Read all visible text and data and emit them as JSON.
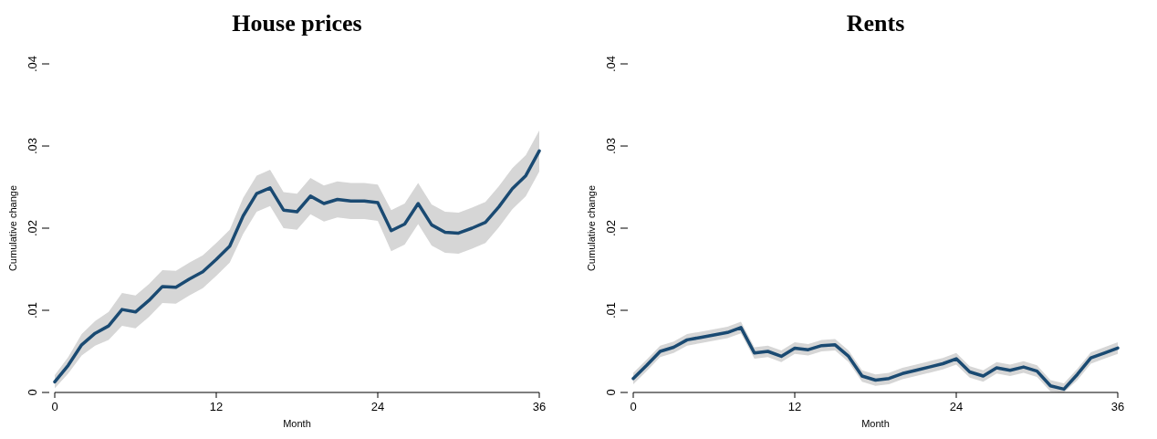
{
  "chart_data": [
    {
      "type": "line",
      "title": "House prices",
      "xlabel": "Month",
      "ylabel": "Cumulative change",
      "xlim": [
        0,
        36
      ],
      "xticks": [
        0,
        12,
        24,
        36
      ],
      "ylim": [
        0,
        0.04
      ],
      "yticks": [
        {
          "value": 0,
          "label": "0"
        },
        {
          "value": 0.01,
          "label": ".01"
        },
        {
          "value": 0.02,
          "label": ".02"
        },
        {
          "value": 0.03,
          "label": ".03"
        },
        {
          "value": 0.04,
          "label": ".04"
        }
      ],
      "grid": false,
      "x": [
        0,
        1,
        2,
        3,
        4,
        5,
        6,
        7,
        8,
        9,
        10,
        11,
        12,
        13,
        14,
        15,
        16,
        17,
        18,
        19,
        20,
        21,
        22,
        23,
        24,
        25,
        26,
        27,
        28,
        29,
        30,
        31,
        32,
        33,
        34,
        35,
        36
      ],
      "series": [
        {
          "color": "#1a4a72",
          "values": [
            0.0013,
            0.0033,
            0.0058,
            0.0072,
            0.0081,
            0.0101,
            0.0098,
            0.0112,
            0.0129,
            0.0128,
            0.0138,
            0.0147,
            0.0162,
            0.0178,
            0.0215,
            0.0242,
            0.0249,
            0.0222,
            0.022,
            0.0239,
            0.023,
            0.0235,
            0.0233,
            0.0233,
            0.0231,
            0.0197,
            0.0205,
            0.023,
            0.0204,
            0.0195,
            0.0194,
            0.02,
            0.0207,
            0.0226,
            0.0248,
            0.0264,
            0.0294
          ],
          "lower": [
            0.0005,
            0.0023,
            0.0045,
            0.0057,
            0.0064,
            0.0081,
            0.0078,
            0.0092,
            0.0109,
            0.0108,
            0.0118,
            0.0127,
            0.0142,
            0.0158,
            0.0193,
            0.022,
            0.0227,
            0.02,
            0.0198,
            0.0217,
            0.0208,
            0.0213,
            0.0211,
            0.0211,
            0.0209,
            0.0172,
            0.018,
            0.0205,
            0.0179,
            0.017,
            0.0169,
            0.0175,
            0.0182,
            0.0201,
            0.0223,
            0.0239,
            0.0269
          ],
          "upper": [
            0.0021,
            0.0043,
            0.0071,
            0.0087,
            0.0098,
            0.0121,
            0.0118,
            0.0132,
            0.0149,
            0.0148,
            0.0158,
            0.0167,
            0.0182,
            0.0198,
            0.0237,
            0.0264,
            0.0271,
            0.0244,
            0.0242,
            0.0261,
            0.0252,
            0.0257,
            0.0255,
            0.0255,
            0.0253,
            0.0222,
            0.023,
            0.0255,
            0.0229,
            0.022,
            0.0219,
            0.0225,
            0.0232,
            0.0251,
            0.0273,
            0.0289,
            0.0319
          ]
        }
      ]
    },
    {
      "type": "line",
      "title": "Rents",
      "xlabel": "Month",
      "ylabel": "Cumulative change",
      "xlim": [
        0,
        36
      ],
      "xticks": [
        0,
        12,
        24,
        36
      ],
      "ylim": [
        0,
        0.04
      ],
      "yticks": [
        {
          "value": 0,
          "label": "0"
        },
        {
          "value": 0.01,
          "label": ".01"
        },
        {
          "value": 0.02,
          "label": ".02"
        },
        {
          "value": 0.03,
          "label": ".03"
        },
        {
          "value": 0.04,
          "label": ".04"
        }
      ],
      "grid": false,
      "x": [
        0,
        1,
        2,
        3,
        4,
        5,
        6,
        7,
        8,
        9,
        10,
        11,
        12,
        13,
        14,
        15,
        16,
        17,
        18,
        19,
        20,
        21,
        22,
        23,
        24,
        25,
        26,
        27,
        28,
        29,
        30,
        31,
        32,
        33,
        34,
        35,
        36
      ],
      "series": [
        {
          "color": "#1a4a72",
          "values": [
            0.0017,
            0.0033,
            0.005,
            0.0055,
            0.0064,
            0.0067,
            0.007,
            0.0073,
            0.0079,
            0.0048,
            0.005,
            0.0044,
            0.0054,
            0.0052,
            0.0057,
            0.0058,
            0.0044,
            0.002,
            0.0015,
            0.0017,
            0.0023,
            0.0027,
            0.0031,
            0.0035,
            0.0041,
            0.0025,
            0.002,
            0.003,
            0.0027,
            0.0031,
            0.0026,
            0.0008,
            0.0004,
            0.0022,
            0.0042,
            0.0048,
            0.0054
          ],
          "lower": [
            0.001,
            0.0026,
            0.0043,
            0.0048,
            0.0057,
            0.006,
            0.0063,
            0.0066,
            0.0072,
            0.0041,
            0.0043,
            0.0037,
            0.0047,
            0.0045,
            0.005,
            0.0051,
            0.0037,
            0.0013,
            0.0008,
            0.001,
            0.0016,
            0.002,
            0.0024,
            0.0028,
            0.0034,
            0.0018,
            0.0013,
            0.0023,
            0.002,
            0.0024,
            0.0019,
            0.0001,
            0.0,
            0.0015,
            0.0035,
            0.0041,
            0.0047
          ],
          "upper": [
            0.0024,
            0.004,
            0.0057,
            0.0062,
            0.0071,
            0.0074,
            0.0077,
            0.008,
            0.0086,
            0.0055,
            0.0057,
            0.0051,
            0.0061,
            0.0059,
            0.0064,
            0.0065,
            0.0051,
            0.0027,
            0.0022,
            0.0024,
            0.003,
            0.0034,
            0.0038,
            0.0042,
            0.0048,
            0.0032,
            0.0027,
            0.0037,
            0.0034,
            0.0038,
            0.0033,
            0.0015,
            0.0011,
            0.0029,
            0.0049,
            0.0055,
            0.0061
          ]
        }
      ]
    }
  ]
}
